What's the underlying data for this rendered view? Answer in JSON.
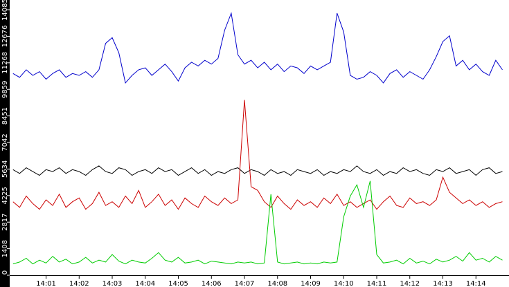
{
  "chart_data": {
    "type": "line",
    "x": [
      840.0,
      840.2,
      840.4,
      840.6,
      840.8,
      841.0,
      841.2,
      841.4,
      841.6,
      841.8,
      842.0,
      842.2,
      842.4,
      842.6,
      842.8,
      843.0,
      843.2,
      843.4,
      843.6,
      843.8,
      844.0,
      844.2,
      844.4,
      844.6,
      844.8,
      845.0,
      845.2,
      845.4,
      845.6,
      845.8,
      846.0,
      846.2,
      846.4,
      846.6,
      846.8,
      847.0,
      847.2,
      847.4,
      847.6,
      847.8,
      848.0,
      848.2,
      848.4,
      848.6,
      848.8,
      849.0,
      849.2,
      849.4,
      849.6,
      849.8,
      850.0,
      850.2,
      850.4,
      850.6,
      850.8,
      851.0,
      851.2,
      851.4,
      851.6,
      851.8,
      852.0,
      852.2,
      852.4,
      852.6,
      852.8,
      853.0,
      853.2,
      853.4,
      853.6,
      853.8,
      854.0,
      854.2,
      854.4,
      854.6,
      854.8
    ],
    "series": [
      {
        "color": "#0000cc",
        "values": [
          10700,
          10500,
          10900,
          10600,
          10800,
          10400,
          10700,
          10900,
          10500,
          10700,
          10600,
          10800,
          10500,
          10900,
          12300,
          12600,
          11800,
          10200,
          10600,
          10900,
          11000,
          10600,
          10900,
          11200,
          10800,
          10300,
          11000,
          11300,
          11100,
          11400,
          11200,
          11500,
          13000,
          13900,
          11700,
          11200,
          11400,
          11000,
          11300,
          10900,
          11200,
          10800,
          11100,
          11000,
          10700,
          11100,
          10900,
          11100,
          11300,
          13900,
          12900,
          10600,
          10400,
          10500,
          10800,
          10600,
          10200,
          10700,
          10900,
          10500,
          10800,
          10600,
          10400,
          10900,
          11600,
          12400,
          12700,
          11100,
          11400,
          10900,
          11200,
          10800,
          10600,
          11400,
          10900
        ]
      },
      {
        "color": "#000000",
        "values": [
          5600,
          5400,
          5700,
          5500,
          5300,
          5600,
          5500,
          5700,
          5400,
          5600,
          5500,
          5300,
          5600,
          5800,
          5500,
          5400,
          5700,
          5600,
          5300,
          5500,
          5600,
          5400,
          5700,
          5500,
          5600,
          5300,
          5500,
          5700,
          5400,
          5600,
          5300,
          5500,
          5400,
          5600,
          5700,
          5400,
          5600,
          5500,
          5300,
          5600,
          5400,
          5500,
          5300,
          5600,
          5500,
          5400,
          5600,
          5300,
          5500,
          5400,
          5600,
          5500,
          5800,
          5500,
          5400,
          5600,
          5300,
          5500,
          5400,
          5700,
          5500,
          5600,
          5400,
          5300,
          5600,
          5500,
          5700,
          5400,
          5500,
          5600,
          5300,
          5600,
          5700,
          5400,
          5500
        ]
      },
      {
        "color": "#cc0000",
        "values": [
          3900,
          3600,
          4200,
          3800,
          3500,
          4000,
          3700,
          4300,
          3600,
          3900,
          4100,
          3500,
          3800,
          4400,
          3700,
          3900,
          3600,
          4200,
          3800,
          4500,
          3600,
          3900,
          4300,
          3700,
          4000,
          3500,
          4100,
          3800,
          3600,
          4200,
          3900,
          3700,
          4100,
          3800,
          4000,
          9300,
          4700,
          4500,
          3900,
          3600,
          4200,
          3800,
          3500,
          4000,
          3700,
          3900,
          3600,
          4100,
          3800,
          4300,
          3700,
          3900,
          3600,
          3800,
          4000,
          3500,
          3900,
          4200,
          3700,
          3600,
          4100,
          3800,
          3900,
          3700,
          4000,
          5200,
          4400,
          4100,
          3800,
          4000,
          3700,
          3900,
          3600,
          3800,
          3900
        ]
      },
      {
        "color": "#00cc00",
        "values": [
          600,
          700,
          900,
          600,
          800,
          650,
          1000,
          700,
          850,
          600,
          700,
          950,
          650,
          800,
          700,
          1100,
          750,
          600,
          800,
          700,
          650,
          900,
          1200,
          800,
          700,
          950,
          650,
          700,
          800,
          600,
          750,
          700,
          650,
          600,
          700,
          650,
          700,
          600,
          650,
          4300,
          700,
          600,
          650,
          700,
          600,
          650,
          600,
          700,
          650,
          700,
          3100,
          4200,
          4800,
          3600,
          5000,
          1100,
          650,
          700,
          800,
          600,
          900,
          650,
          750,
          600,
          850,
          700,
          800,
          1000,
          750,
          1200,
          800,
          900,
          700,
          1000,
          800
        ]
      }
    ],
    "xlim": [
      839.9,
      855.0
    ],
    "ylim": [
      0,
      14600
    ],
    "xticks": [
      {
        "value": 841,
        "label": "14:01"
      },
      {
        "value": 842,
        "label": "14:02"
      },
      {
        "value": 843,
        "label": "14:03"
      },
      {
        "value": 844,
        "label": "14:04"
      },
      {
        "value": 845,
        "label": "14:05"
      },
      {
        "value": 846,
        "label": "14:06"
      },
      {
        "value": 847,
        "label": "14:07"
      },
      {
        "value": 848,
        "label": "14:08"
      },
      {
        "value": 849,
        "label": "14:09"
      },
      {
        "value": 850,
        "label": "14:10"
      },
      {
        "value": 851,
        "label": "14:11"
      },
      {
        "value": 852,
        "label": "14:12"
      },
      {
        "value": 853,
        "label": "14:13"
      },
      {
        "value": 854,
        "label": "14:14"
      }
    ],
    "yticks": [
      0,
      1408,
      2817,
      4225,
      5634,
      7042,
      8451,
      9859,
      11268,
      12676,
      14085
    ]
  }
}
